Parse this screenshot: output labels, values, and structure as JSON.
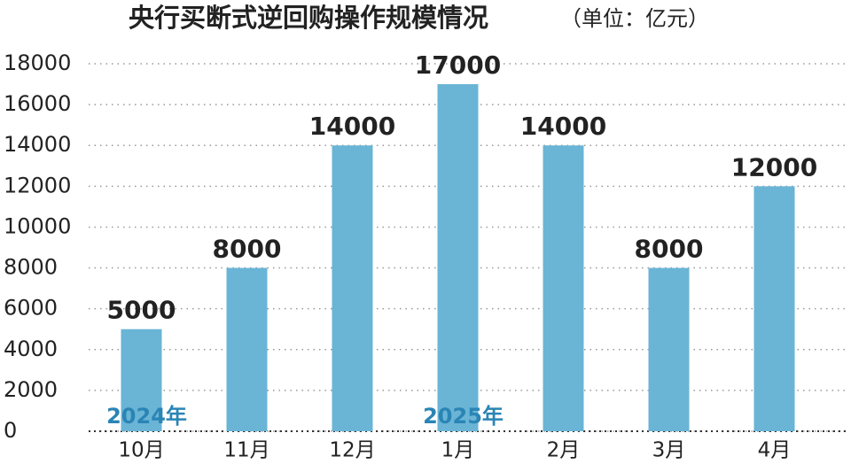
{
  "chart_data": {
    "type": "bar",
    "title": "央行买断式逆回购操作规模情况",
    "subtitle": "（单位：亿元）",
    "categories": [
      "10月",
      "11月",
      "12月",
      "1月",
      "2月",
      "3月",
      "4月"
    ],
    "values": [
      5000,
      8000,
      14000,
      17000,
      14000,
      8000,
      12000
    ],
    "color": "#6ab4d6",
    "ylim": [
      0,
      18000
    ],
    "yticks": [
      0,
      2000,
      4000,
      6000,
      8000,
      10000,
      12000,
      14000,
      16000,
      18000
    ],
    "grid": true,
    "annotations": [
      {
        "text": "2024年",
        "x": "10月"
      },
      {
        "text": "2025年",
        "x": "1月"
      }
    ]
  }
}
